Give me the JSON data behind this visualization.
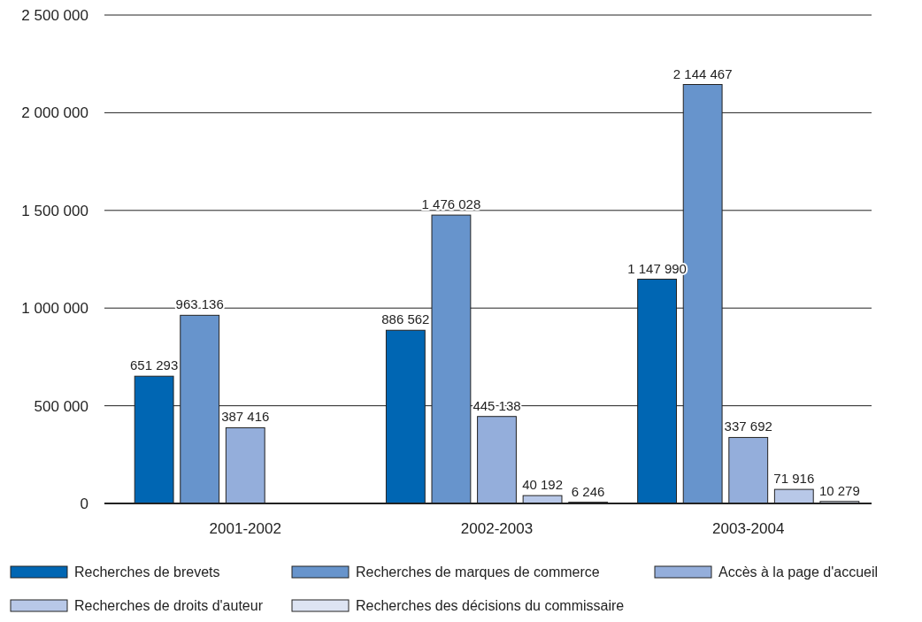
{
  "chart_data": {
    "type": "bar",
    "categories": [
      "2001-2002",
      "2002-2003",
      "2003-2004"
    ],
    "series": [
      {
        "name": "Recherches de brevets",
        "color": "#0066b3",
        "values": [
          651293,
          886562,
          1147990
        ],
        "value_labels": [
          "651 293",
          "886 562",
          "1 147 990"
        ]
      },
      {
        "name": "Recherches de marques de commerce",
        "color": "#6794cc",
        "values": [
          963136,
          1476028,
          2144467
        ],
        "value_labels": [
          "963 136",
          "1 476 028",
          "2 144 467"
        ]
      },
      {
        "name": "Accès à la page d'accueil",
        "color": "#94aedb",
        "values": [
          387416,
          445138,
          337692
        ],
        "value_labels": [
          "387 416",
          "445 138",
          "337 692"
        ]
      },
      {
        "name": "Recherches de droits d'auteur",
        "color": "#b8c8e8",
        "values": [
          null,
          40192,
          71916
        ],
        "value_labels": [
          null,
          "40 192",
          "71 916"
        ]
      },
      {
        "name": "Recherches des décisions du commissaire",
        "color": "#dde4f3",
        "values": [
          null,
          6246,
          10279
        ],
        "value_labels": [
          null,
          "6 246",
          "10 279"
        ]
      }
    ],
    "ylim": [
      0,
      2500000
    ],
    "yticks": [
      0,
      {
        "value": 500000,
        "label": "500 000"
      },
      {
        "value": 1000000,
        "label": "1 000 000"
      },
      {
        "value": 1500000,
        "label": "1 500 000"
      },
      {
        "value": 2000000,
        "label": "2 000 000"
      },
      {
        "value": 2500000,
        "label": "2 500 000"
      }
    ],
    "grid": "y",
    "legend": "bottom"
  }
}
